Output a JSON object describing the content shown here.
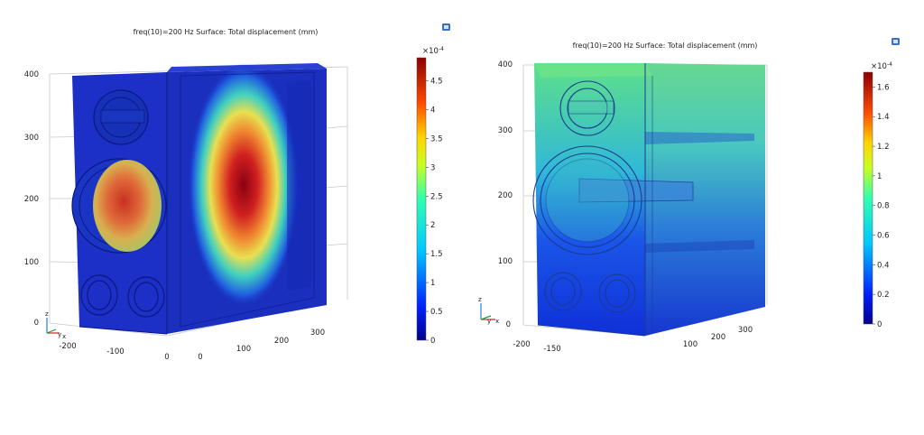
{
  "chart_data": [
    {
      "type": "heatmap",
      "title": "freq(10)=200 Hz   Surface: Total displacement (mm)",
      "z_ticks": [
        "400",
        "300",
        "200",
        "100",
        "0"
      ],
      "x_ticks": [
        "-200",
        "-100",
        "0"
      ],
      "y_ticks": [
        "0",
        "100",
        "200",
        "300"
      ],
      "axis_labels": {
        "z": "z",
        "y": "y",
        "x": "x"
      },
      "colorbar": {
        "exponent_label": "×10",
        "exponent": "-4",
        "range": [
          0,
          4.9
        ],
        "ticks": [
          "4.5",
          "4",
          "3.5",
          "3",
          "2.5",
          "2",
          "1.5",
          "1",
          "0.5",
          "0"
        ]
      },
      "colormap": "rainbow",
      "colors": {
        "low": "#000a8c",
        "mid": "#00e5e5",
        "high": "#8c0000"
      }
    },
    {
      "type": "heatmap",
      "title": "freq(10)=200 Hz   Surface: Total displacement (mm)",
      "z_ticks": [
        "400",
        "300",
        "200",
        "100",
        "0"
      ],
      "x_ticks": [
        "-200",
        "-150"
      ],
      "y_ticks": [
        "100",
        "200",
        "300"
      ],
      "axis_labels": {
        "z": "z",
        "y": "y",
        "x": "x"
      },
      "colorbar": {
        "exponent_label": "×10",
        "exponent": "-4",
        "range": [
          0,
          1.7
        ],
        "ticks": [
          "1.6",
          "1.4",
          "1.2",
          "1",
          "0.8",
          "0.6",
          "0.4",
          "0.2",
          "0"
        ]
      },
      "colormap": "rainbow",
      "colors": {
        "low": "#000a8c",
        "mid": "#00e5e5",
        "high": "#8c0000"
      }
    }
  ]
}
